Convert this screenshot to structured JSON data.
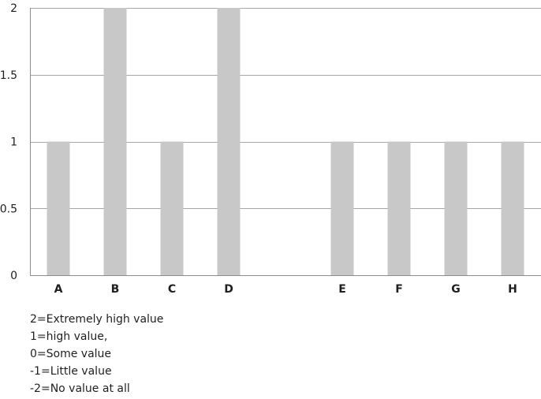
{
  "chart_data": {
    "type": "bar",
    "categories": [
      "A",
      "B",
      "C",
      "D",
      "",
      "E",
      "F",
      "G",
      "H"
    ],
    "values": [
      1,
      2,
      1,
      2,
      null,
      1,
      1,
      1,
      1
    ],
    "ylim": [
      0,
      2
    ],
    "yticks": [
      0,
      0.5,
      1,
      1.5,
      2
    ],
    "ytick_labels": [
      "0",
      "0.5",
      "1",
      "1.5",
      "2"
    ],
    "grid": true,
    "bar_color": "#c8c8c8",
    "grid_color": "#a6a6a6",
    "axis_color": "#8c8c8c"
  },
  "notes": [
    "2=Extremely high value",
    "1=high value,",
    "0=Some value",
    "-1=Little value",
    "-2=No value at all"
  ]
}
